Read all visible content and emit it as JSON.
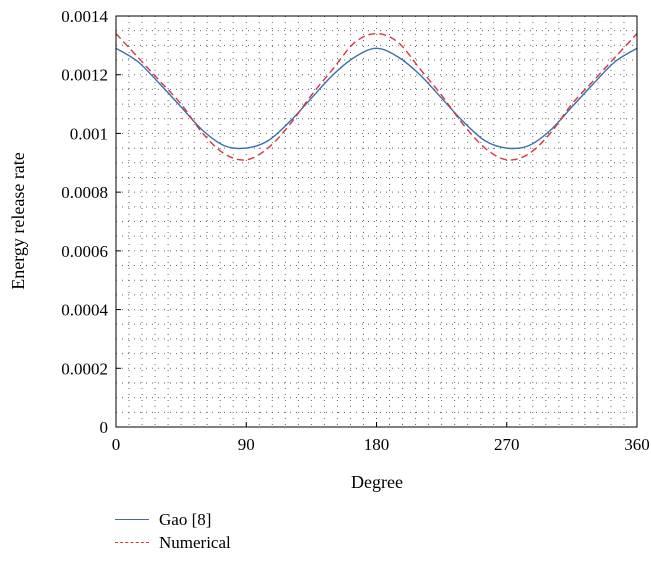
{
  "chart_data": {
    "type": "line",
    "title": "",
    "xlabel": "Degree",
    "ylabel": "Energy release rate",
    "xlim": [
      0,
      360
    ],
    "ylim": [
      0,
      0.0014
    ],
    "x_ticks": [
      "0",
      "90",
      "180",
      "270",
      "360"
    ],
    "y_ticks": [
      "0",
      "0.0002",
      "0.0004",
      "0.0006",
      "0.0008",
      "0.001",
      "0.0012",
      "0.0014"
    ],
    "grid": "dotted",
    "legend_position": "bottom-left",
    "x": [
      0,
      15,
      30,
      45,
      60,
      75,
      90,
      105,
      120,
      135,
      150,
      165,
      180,
      195,
      210,
      225,
      240,
      255,
      270,
      285,
      300,
      315,
      330,
      345,
      360
    ],
    "series": [
      {
        "name": "Gao [8]",
        "color": "#3a6fb0",
        "style": "solid",
        "values": [
          0.00129,
          0.001245,
          0.00117,
          0.00109,
          0.00101,
          0.000958,
          0.00095,
          0.000975,
          0.00104,
          0.00112,
          0.0012,
          0.00126,
          0.00129,
          0.00126,
          0.0012,
          0.00112,
          0.00104,
          0.000975,
          0.00095,
          0.000958,
          0.00101,
          0.00109,
          0.00117,
          0.001245,
          0.00129
        ]
      },
      {
        "name": "Numerical",
        "color": "#d9363e",
        "style": "dashed",
        "values": [
          0.00134,
          0.00126,
          0.00118,
          0.0011,
          0.001,
          0.00093,
          0.00091,
          0.00095,
          0.00103,
          0.00113,
          0.00122,
          0.00131,
          0.00134,
          0.00131,
          0.00122,
          0.00113,
          0.00103,
          0.00095,
          0.00091,
          0.00093,
          0.001,
          0.0011,
          0.00118,
          0.00126,
          0.00134
        ]
      }
    ]
  }
}
